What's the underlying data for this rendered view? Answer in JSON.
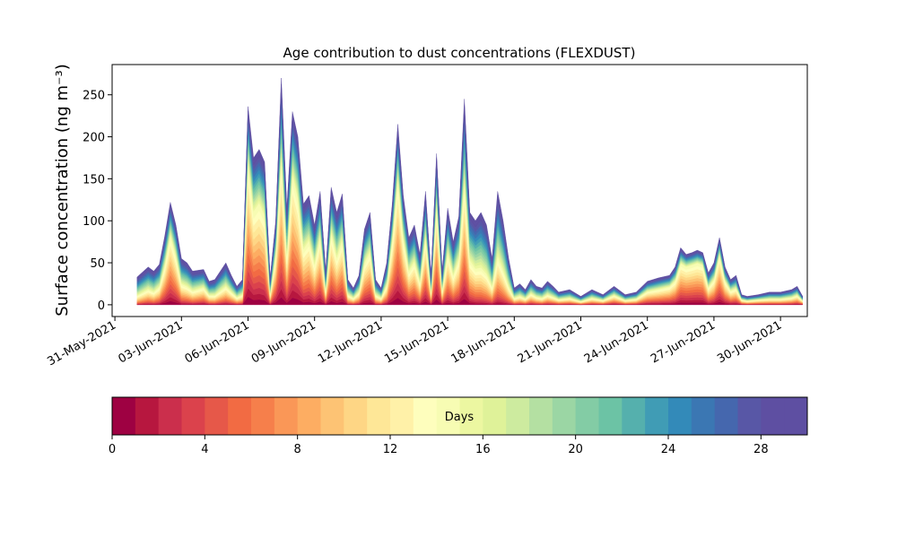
{
  "chart_data": [
    {
      "type": "area",
      "stacked": true,
      "title": "Age contribution to dust concentrations (FLEXDUST)",
      "ylabel": "Surface concentration (ng m⁻³)",
      "xlabel": "",
      "xlim": [
        "2021-05-30T21:00",
        "2021-07-01T05:00"
      ],
      "ylim": [
        -14,
        286
      ],
      "x_ticks": [
        "31-May-2021",
        "03-Jun-2021",
        "06-Jun-2021",
        "09-Jun-2021",
        "12-Jun-2021",
        "15-Jun-2021",
        "18-Jun-2021",
        "21-Jun-2021",
        "24-Jun-2021",
        "27-Jun-2021",
        "30-Jun-2021"
      ],
      "y_ticks": [
        0,
        50,
        100,
        150,
        200,
        250
      ],
      "grid": false,
      "series_description": "30 stacked layers, one per age day (0 to 30 days), coloured from dark red (youngest) to purple (oldest)",
      "n_layers": 30,
      "x": [
        "2021-06-01T00:00",
        "2021-06-01T12:00",
        "2021-06-01T18:00",
        "2021-06-02T00:00",
        "2021-06-02T06:00",
        "2021-06-02T12:00",
        "2021-06-02T18:00",
        "2021-06-03T00:00",
        "2021-06-03T06:00",
        "2021-06-03T12:00",
        "2021-06-04T00:00",
        "2021-06-04T06:00",
        "2021-06-04T12:00",
        "2021-06-05T00:00",
        "2021-06-05T06:00",
        "2021-06-05T12:00",
        "2021-06-05T18:00",
        "2021-06-06T00:00",
        "2021-06-06T06:00",
        "2021-06-06T12:00",
        "2021-06-06T18:00",
        "2021-06-07T00:00",
        "2021-06-07T06:00",
        "2021-06-07T12:00",
        "2021-06-07T18:00",
        "2021-06-08T00:00",
        "2021-06-08T06:00",
        "2021-06-08T12:00",
        "2021-06-08T18:00",
        "2021-06-09T00:00",
        "2021-06-09T06:00",
        "2021-06-09T12:00",
        "2021-06-09T18:00",
        "2021-06-10T00:00",
        "2021-06-10T06:00",
        "2021-06-10T12:00",
        "2021-06-10T18:00",
        "2021-06-11T00:00",
        "2021-06-11T06:00",
        "2021-06-11T12:00",
        "2021-06-11T18:00",
        "2021-06-12T00:00",
        "2021-06-12T06:00",
        "2021-06-12T12:00",
        "2021-06-12T18:00",
        "2021-06-13T00:00",
        "2021-06-13T06:00",
        "2021-06-13T12:00",
        "2021-06-13T18:00",
        "2021-06-14T00:00",
        "2021-06-14T06:00",
        "2021-06-14T12:00",
        "2021-06-14T18:00",
        "2021-06-15T00:00",
        "2021-06-15T06:00",
        "2021-06-15T12:00",
        "2021-06-15T18:00",
        "2021-06-16T00:00",
        "2021-06-16T06:00",
        "2021-06-16T12:00",
        "2021-06-16T18:00",
        "2021-06-17T00:00",
        "2021-06-17T06:00",
        "2021-06-17T12:00",
        "2021-06-17T18:00",
        "2021-06-18T00:00",
        "2021-06-18T06:00",
        "2021-06-18T12:00",
        "2021-06-18T18:00",
        "2021-06-19T00:00",
        "2021-06-19T06:00",
        "2021-06-19T12:00",
        "2021-06-19T18:00",
        "2021-06-20T00:00",
        "2021-06-20T12:00",
        "2021-06-21T00:00",
        "2021-06-21T12:00",
        "2021-06-22T00:00",
        "2021-06-22T12:00",
        "2021-06-23T00:00",
        "2021-06-23T12:00",
        "2021-06-24T00:00",
        "2021-06-24T12:00",
        "2021-06-25T00:00",
        "2021-06-25T06:00",
        "2021-06-25T12:00",
        "2021-06-25T18:00",
        "2021-06-26T00:00",
        "2021-06-26T06:00",
        "2021-06-26T12:00",
        "2021-06-26T18:00",
        "2021-06-27T00:00",
        "2021-06-27T06:00",
        "2021-06-27T12:00",
        "2021-06-27T18:00",
        "2021-06-28T00:00",
        "2021-06-28T06:00",
        "2021-06-28T12:00",
        "2021-06-29T00:00",
        "2021-06-29T12:00",
        "2021-06-30T00:00",
        "2021-06-30T12:00",
        "2021-06-30T18:00",
        "2021-07-01T00:00"
      ],
      "total": [
        33,
        45,
        40,
        48,
        82,
        122,
        95,
        55,
        50,
        40,
        42,
        28,
        30,
        50,
        35,
        22,
        30,
        236,
        175,
        185,
        170,
        32,
        100,
        270,
        115,
        230,
        200,
        120,
        130,
        95,
        135,
        40,
        140,
        110,
        132,
        30,
        20,
        35,
        90,
        110,
        30,
        20,
        50,
        120,
        215,
        130,
        80,
        95,
        60,
        135,
        35,
        180,
        40,
        115,
        75,
        105,
        245,
        110,
        100,
        110,
        95,
        55,
        135,
        100,
        55,
        20,
        25,
        18,
        30,
        22,
        20,
        28,
        22,
        15,
        18,
        10,
        18,
        12,
        22,
        12,
        15,
        28,
        32,
        35,
        45,
        68,
        60,
        62,
        65,
        62,
        38,
        50,
        80,
        45,
        30,
        35,
        12,
        10,
        12,
        15,
        15,
        18,
        22,
        10
      ],
      "young": [
        0,
        5,
        3,
        8,
        30,
        65,
        40,
        10,
        8,
        5,
        10,
        3,
        2,
        8,
        5,
        2,
        3,
        140,
        80,
        90,
        75,
        3,
        40,
        130,
        30,
        120,
        90,
        40,
        50,
        25,
        55,
        5,
        60,
        30,
        50,
        3,
        2,
        5,
        30,
        40,
        3,
        2,
        10,
        55,
        120,
        55,
        20,
        30,
        10,
        55,
        5,
        90,
        5,
        35,
        15,
        30,
        100,
        25,
        15,
        12,
        8,
        5,
        20,
        12,
        5,
        2,
        3,
        2,
        5,
        3,
        2,
        4,
        3,
        2,
        3,
        1,
        3,
        2,
        6,
        2,
        3,
        10,
        12,
        15,
        20,
        40,
        38,
        40,
        42,
        40,
        12,
        20,
        50,
        20,
        10,
        12,
        3,
        2,
        3,
        3,
        3,
        4,
        6,
        2
      ],
      "colorbar": {
        "label": "Days",
        "ticks": [
          0,
          4,
          8,
          12,
          16,
          20,
          24,
          28
        ],
        "vmin": 0,
        "vmax": 30,
        "colors": [
          "#9e0142",
          "#b7173f",
          "#cb2f4c",
          "#db424c",
          "#e65849",
          "#f26b43",
          "#f67f4b",
          "#fa9757",
          "#fdad62",
          "#fdc374",
          "#fed685",
          "#fee797",
          "#fff1a8",
          "#fefebd",
          "#f7fcb3",
          "#ecf7a1",
          "#dff299",
          "#cdeb9f",
          "#b4e0a2",
          "#9bd6a4",
          "#83cca5",
          "#6cc3a5",
          "#55b0ad",
          "#409cb5",
          "#338ab9",
          "#3b77b3",
          "#4567ae",
          "#5857a6",
          "#5e4fa2",
          "#5e4fa2"
        ]
      }
    }
  ]
}
